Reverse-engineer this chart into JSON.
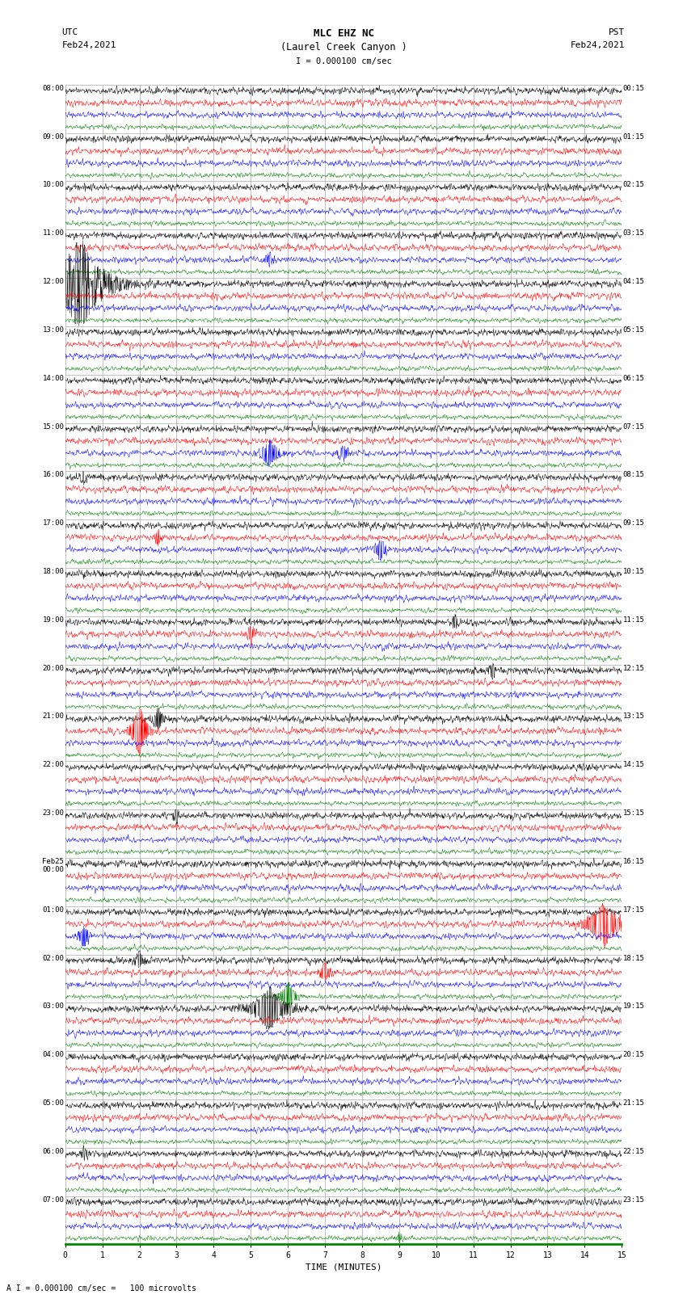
{
  "title_line1": "MLC EHZ NC",
  "title_line2": "(Laurel Creek Canyon )",
  "scale_label": "I = 0.000100 cm/sec",
  "utc_label": "UTC",
  "utc_date": "Feb24,2021",
  "pst_label": "PST",
  "pst_date": "Feb24,2021",
  "xlabel": "TIME (MINUTES)",
  "bottom_note": "A I = 0.000100 cm/sec =   100 microvolts",
  "total_rows": 24,
  "traces_per_row": 4,
  "colors": [
    "black",
    "red",
    "blue",
    "green"
  ],
  "bg_color": "white",
  "grid_color": "#aaaaaa",
  "fig_width": 8.5,
  "fig_height": 16.13,
  "noise_amp": 0.3,
  "left_time_labels": [
    "08:00",
    "09:00",
    "10:00",
    "11:00",
    "12:00",
    "13:00",
    "14:00",
    "15:00",
    "16:00",
    "17:00",
    "18:00",
    "19:00",
    "20:00",
    "21:00",
    "22:00",
    "23:00",
    "Feb25\n00:00",
    "01:00",
    "02:00",
    "03:00",
    "04:00",
    "05:00",
    "06:00",
    "07:00"
  ],
  "right_time_labels": [
    "00:15",
    "01:15",
    "02:15",
    "03:15",
    "04:15",
    "05:15",
    "06:15",
    "07:15",
    "08:15",
    "09:15",
    "10:15",
    "11:15",
    "12:15",
    "13:15",
    "14:15",
    "15:15",
    "16:15",
    "17:15",
    "18:15",
    "19:15",
    "20:15",
    "21:15",
    "22:15",
    "23:15"
  ],
  "green_axis_color": "#008800"
}
